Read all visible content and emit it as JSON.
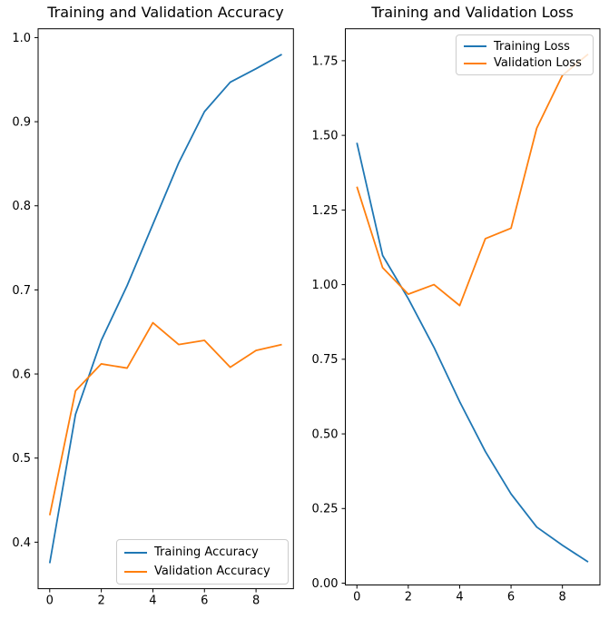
{
  "colors": {
    "training": "#1f77b4",
    "validation": "#ff7f0e",
    "axis": "#000000",
    "text": "#000000",
    "legend_border": "#cccccc",
    "background": "#ffffff"
  },
  "chart_data": [
    {
      "type": "line",
      "title": "Training and Validation Accuracy",
      "xlabel": "",
      "ylabel": "",
      "grid": false,
      "x": [
        0,
        1,
        2,
        3,
        4,
        5,
        6,
        7,
        8,
        9
      ],
      "series": [
        {
          "name": "Training Accuracy",
          "color": "#1f77b4",
          "values": [
            0.375,
            0.552,
            0.64,
            0.705,
            0.778,
            0.851,
            0.912,
            0.947,
            0.963,
            0.98
          ]
        },
        {
          "name": "Validation Accuracy",
          "color": "#ff7f0e",
          "values": [
            0.432,
            0.58,
            0.612,
            0.607,
            0.661,
            0.635,
            0.64,
            0.608,
            0.628,
            0.635
          ]
        }
      ],
      "xlim": [
        -0.45,
        9.45
      ],
      "ylim": [
        0.3447,
        1.0105
      ],
      "xticks": [
        0,
        2,
        4,
        6,
        8
      ],
      "xtick_labels": [
        "0",
        "2",
        "4",
        "6",
        "8"
      ],
      "yticks": [
        0.4,
        0.5,
        0.6,
        0.7,
        0.8,
        0.9,
        1.0
      ],
      "ytick_labels": [
        "0.4",
        "0.5",
        "0.6",
        "0.7",
        "0.8",
        "0.9",
        "1.0"
      ],
      "legend": {
        "position": "lower right",
        "labels": [
          "Training Accuracy",
          "Validation Accuracy"
        ]
      }
    },
    {
      "type": "line",
      "title": "Training and Validation Loss",
      "xlabel": "",
      "ylabel": "",
      "grid": false,
      "x": [
        0,
        1,
        2,
        3,
        4,
        5,
        6,
        7,
        8,
        9
      ],
      "series": [
        {
          "name": "Training Loss",
          "color": "#1f77b4",
          "values": [
            1.475,
            1.098,
            0.953,
            0.79,
            0.608,
            0.441,
            0.299,
            0.188,
            0.127,
            0.071
          ]
        },
        {
          "name": "Validation Loss",
          "color": "#ff7f0e",
          "values": [
            1.328,
            1.057,
            0.968,
            1.0,
            0.93,
            1.154,
            1.189,
            1.524,
            1.701,
            1.772
          ]
        }
      ],
      "xlim": [
        -0.45,
        9.46
      ],
      "ylim": [
        -0.006,
        1.857
      ],
      "xticks": [
        0,
        2,
        4,
        6,
        8
      ],
      "xtick_labels": [
        "0",
        "2",
        "4",
        "6",
        "8"
      ],
      "yticks": [
        0.0,
        0.25,
        0.5,
        0.75,
        1.0,
        1.25,
        1.5,
        1.75
      ],
      "ytick_labels": [
        "0.00",
        "0.25",
        "0.50",
        "0.75",
        "1.00",
        "1.25",
        "1.50",
        "1.75"
      ],
      "legend": {
        "position": "upper right",
        "labels": [
          "Training Loss",
          "Validation Loss"
        ]
      }
    }
  ]
}
